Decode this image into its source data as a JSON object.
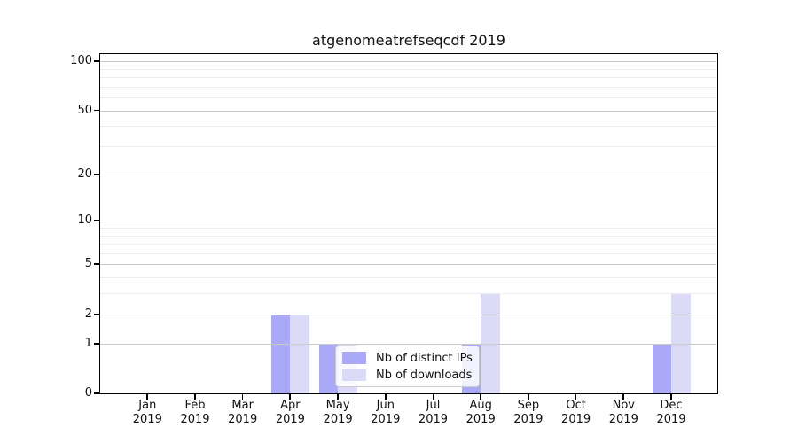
{
  "title": "atgenomeatrefseqcdf 2019",
  "chart_data": {
    "type": "bar",
    "title": "atgenomeatrefseqcdf 2019",
    "categories": [
      "Jan 2019",
      "Feb 2019",
      "Mar 2019",
      "Apr 2019",
      "May 2019",
      "Jun 2019",
      "Jul 2019",
      "Aug 2019",
      "Sep 2019",
      "Oct 2019",
      "Nov 2019",
      "Dec 2019"
    ],
    "series": [
      {
        "name": "Nb of distinct IPs",
        "color": "#a9a9f7",
        "values": [
          0,
          0,
          0,
          2,
          1,
          0,
          0,
          1,
          0,
          0,
          0,
          1
        ]
      },
      {
        "name": "Nb of downloads",
        "color": "#dbdbf8",
        "values": [
          0,
          0,
          0,
          2,
          1,
          0,
          0,
          3,
          0,
          0,
          0,
          3
        ]
      }
    ],
    "xlabel": "",
    "ylabel": "",
    "yscale": "log10(1+y)",
    "yticks": [
      0,
      1,
      2,
      5,
      10,
      20,
      50,
      100
    ],
    "yticks_minor": [
      3,
      4,
      6,
      7,
      8,
      9,
      30,
      40,
      60,
      70,
      80,
      90
    ],
    "ylim": [
      0,
      110
    ],
    "grid": "on",
    "grid_above_bars": true,
    "legend_position": "lower center"
  }
}
